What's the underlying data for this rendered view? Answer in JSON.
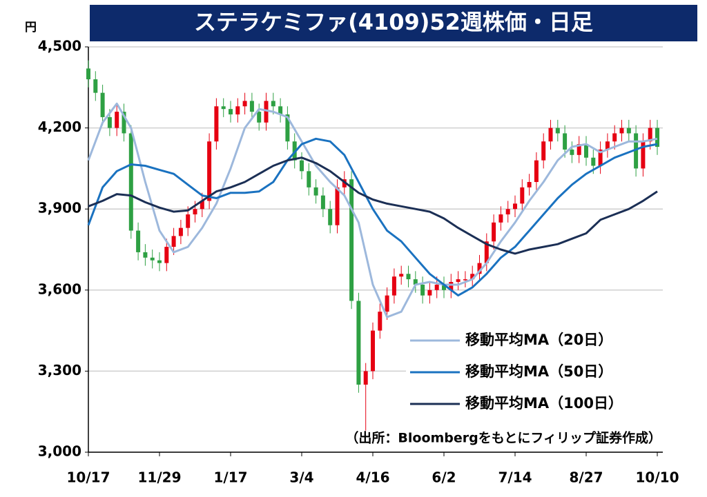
{
  "chart_data": {
    "type": "candlestick",
    "title": "ステラケミファ(4109)52週株価・日足",
    "unit_label": "円",
    "source_note": "（出所：Bloombergをもとにフィリップ証券作成）",
    "categories": [
      "10/17",
      null,
      null,
      null,
      null,
      null,
      null,
      null,
      null,
      null,
      "11/29",
      null,
      null,
      null,
      null,
      null,
      null,
      null,
      null,
      null,
      "1/17",
      null,
      null,
      null,
      null,
      null,
      null,
      null,
      null,
      null,
      "3/4",
      null,
      null,
      null,
      null,
      null,
      null,
      null,
      null,
      null,
      "4/16",
      null,
      null,
      null,
      null,
      null,
      null,
      null,
      null,
      null,
      "6/2",
      null,
      null,
      null,
      null,
      null,
      null,
      null,
      null,
      null,
      "7/14",
      null,
      null,
      null,
      null,
      null,
      null,
      null,
      null,
      null,
      "8/27",
      null,
      null,
      null,
      null,
      null,
      null,
      null,
      null,
      null,
      "10/10"
    ],
    "open": [
      4420,
      4380,
      4330,
      4240,
      4200,
      4260,
      4180,
      3820,
      3740,
      3720,
      3710,
      3700,
      3760,
      3800,
      3830,
      3880,
      3900,
      3930,
      4150,
      4280,
      4270,
      4250,
      4280,
      4300,
      4260,
      4220,
      4300,
      4280,
      4250,
      4150,
      4080,
      4040,
      3980,
      3950,
      3900,
      3840,
      3980,
      4010,
      3560,
      3250,
      3300,
      3450,
      3520,
      3580,
      3650,
      3660,
      3640,
      3620,
      3580,
      3600,
      3620,
      3600,
      3630,
      3640,
      3640,
      3660,
      3700,
      3780,
      3850,
      3880,
      3900,
      3920,
      3980,
      4000,
      4080,
      4150,
      4200,
      4180,
      4120,
      4100,
      4140,
      4090,
      4060,
      4120,
      4150,
      4180,
      4200,
      4180,
      4050,
      4150,
      4200
    ],
    "high": [
      4450,
      4410,
      4360,
      4270,
      4290,
      4290,
      4210,
      3850,
      3770,
      3750,
      3740,
      3790,
      3830,
      3860,
      3910,
      3930,
      3960,
      4180,
      4310,
      4310,
      4300,
      4310,
      4330,
      4330,
      4290,
      4330,
      4330,
      4310,
      4280,
      4180,
      4110,
      4070,
      4010,
      3980,
      3930,
      4010,
      4040,
      4040,
      3590,
      3330,
      3480,
      3550,
      3610,
      3680,
      3690,
      3690,
      3670,
      3650,
      3630,
      3650,
      3650,
      3660,
      3670,
      3670,
      3690,
      3730,
      3810,
      3880,
      3910,
      3930,
      3950,
      4010,
      4030,
      4110,
      4180,
      4230,
      4230,
      4210,
      4150,
      4170,
      4170,
      4120,
      4150,
      4180,
      4210,
      4230,
      4230,
      4210,
      4180,
      4230,
      4230
    ],
    "low": [
      4350,
      4300,
      4210,
      4170,
      4170,
      4150,
      3790,
      3710,
      3690,
      3680,
      3670,
      3670,
      3730,
      3770,
      3800,
      3850,
      3870,
      3900,
      4120,
      4240,
      4220,
      4220,
      4250,
      4230,
      4190,
      4190,
      4250,
      4220,
      4120,
      4050,
      4010,
      3950,
      3920,
      3870,
      3810,
      3810,
      3950,
      3530,
      3220,
      3080,
      3270,
      3420,
      3490,
      3550,
      3620,
      3610,
      3590,
      3550,
      3550,
      3570,
      3570,
      3570,
      3600,
      3610,
      3610,
      3630,
      3670,
      3750,
      3820,
      3850,
      3870,
      3890,
      3950,
      3970,
      4050,
      4120,
      4150,
      4090,
      4070,
      4070,
      4060,
      4030,
      4030,
      4090,
      4120,
      4150,
      4150,
      4020,
      4020,
      4120,
      4100
    ],
    "close": [
      4380,
      4330,
      4240,
      4200,
      4260,
      4180,
      3820,
      3740,
      3720,
      3710,
      3700,
      3760,
      3800,
      3830,
      3880,
      3900,
      3930,
      4150,
      4280,
      4270,
      4250,
      4280,
      4300,
      4260,
      4220,
      4300,
      4280,
      4250,
      4150,
      4080,
      4040,
      3980,
      3950,
      3900,
      3840,
      3980,
      4010,
      3560,
      3250,
      3300,
      3450,
      3520,
      3580,
      3650,
      3660,
      3640,
      3620,
      3580,
      3600,
      3620,
      3600,
      3630,
      3640,
      3640,
      3660,
      3700,
      3780,
      3850,
      3880,
      3900,
      3920,
      3980,
      4000,
      4080,
      4150,
      4200,
      4180,
      4120,
      4100,
      4140,
      4090,
      4060,
      4120,
      4150,
      4180,
      4200,
      4180,
      4050,
      4150,
      4200,
      4130
    ],
    "up_color": "#e60012",
    "down_color": "#2ea043",
    "ylim": [
      3000,
      4500
    ],
    "yticks": [
      {
        "value": 3000,
        "label": "3,000"
      },
      {
        "value": 3300,
        "label": "3,300"
      },
      {
        "value": 3600,
        "label": "3,600"
      },
      {
        "value": 3900,
        "label": "3,900"
      },
      {
        "value": 4200,
        "label": "4,200"
      },
      {
        "value": 4500,
        "label": "4,500"
      }
    ],
    "grid": true,
    "legend_position": "lower right",
    "series": [
      {
        "name": "移動平均MA（20日）",
        "color": "#9db8dc",
        "x": [
          0,
          2,
          4,
          6,
          8,
          10,
          12,
          14,
          16,
          18,
          20,
          22,
          24,
          26,
          28,
          30,
          32,
          34,
          36,
          38,
          40,
          42,
          44,
          46,
          48,
          50,
          52,
          54,
          56,
          58,
          60,
          62,
          64,
          66,
          68,
          70,
          72,
          74,
          76,
          78,
          80
        ],
        "values": [
          4080,
          4220,
          4290,
          4200,
          4000,
          3820,
          3740,
          3760,
          3830,
          3920,
          4050,
          4200,
          4270,
          4260,
          4240,
          4150,
          4060,
          4000,
          3950,
          3850,
          3620,
          3500,
          3520,
          3620,
          3630,
          3620,
          3620,
          3640,
          3700,
          3780,
          3850,
          3930,
          4000,
          4080,
          4130,
          4140,
          4110,
          4130,
          4150,
          4150,
          4160
        ]
      },
      {
        "name": "移動平均MA（50日）",
        "color": "#1a72c0",
        "x": [
          0,
          2,
          4,
          6,
          8,
          10,
          12,
          14,
          16,
          18,
          20,
          22,
          24,
          26,
          28,
          30,
          32,
          34,
          36,
          38,
          40,
          42,
          44,
          46,
          48,
          50,
          52,
          54,
          56,
          58,
          60,
          62,
          64,
          66,
          68,
          70,
          72,
          74,
          76,
          78,
          80
        ],
        "values": [
          3840,
          3980,
          4040,
          4065,
          4060,
          4045,
          4030,
          3990,
          3950,
          3940,
          3960,
          3960,
          3965,
          4000,
          4080,
          4140,
          4160,
          4150,
          4100,
          4000,
          3900,
          3820,
          3780,
          3720,
          3660,
          3620,
          3580,
          3610,
          3660,
          3720,
          3760,
          3820,
          3880,
          3940,
          3990,
          4030,
          4060,
          4090,
          4110,
          4130,
          4140
        ]
      },
      {
        "name": "移動平均MA（100日）",
        "color": "#1b2f55",
        "x": [
          0,
          2,
          4,
          6,
          8,
          10,
          12,
          14,
          16,
          18,
          20,
          22,
          24,
          26,
          28,
          30,
          32,
          34,
          36,
          38,
          40,
          42,
          44,
          46,
          48,
          50,
          52,
          54,
          56,
          58,
          60,
          62,
          64,
          66,
          68,
          70,
          72,
          74,
          76,
          78,
          80
        ],
        "values": [
          3910,
          3930,
          3955,
          3950,
          3925,
          3905,
          3890,
          3895,
          3930,
          3965,
          3980,
          4000,
          4030,
          4060,
          4080,
          4090,
          4070,
          4040,
          4000,
          3960,
          3935,
          3920,
          3910,
          3900,
          3890,
          3865,
          3830,
          3800,
          3770,
          3750,
          3735,
          3750,
          3760,
          3770,
          3790,
          3810,
          3860,
          3880,
          3900,
          3930,
          3965
        ]
      }
    ]
  }
}
